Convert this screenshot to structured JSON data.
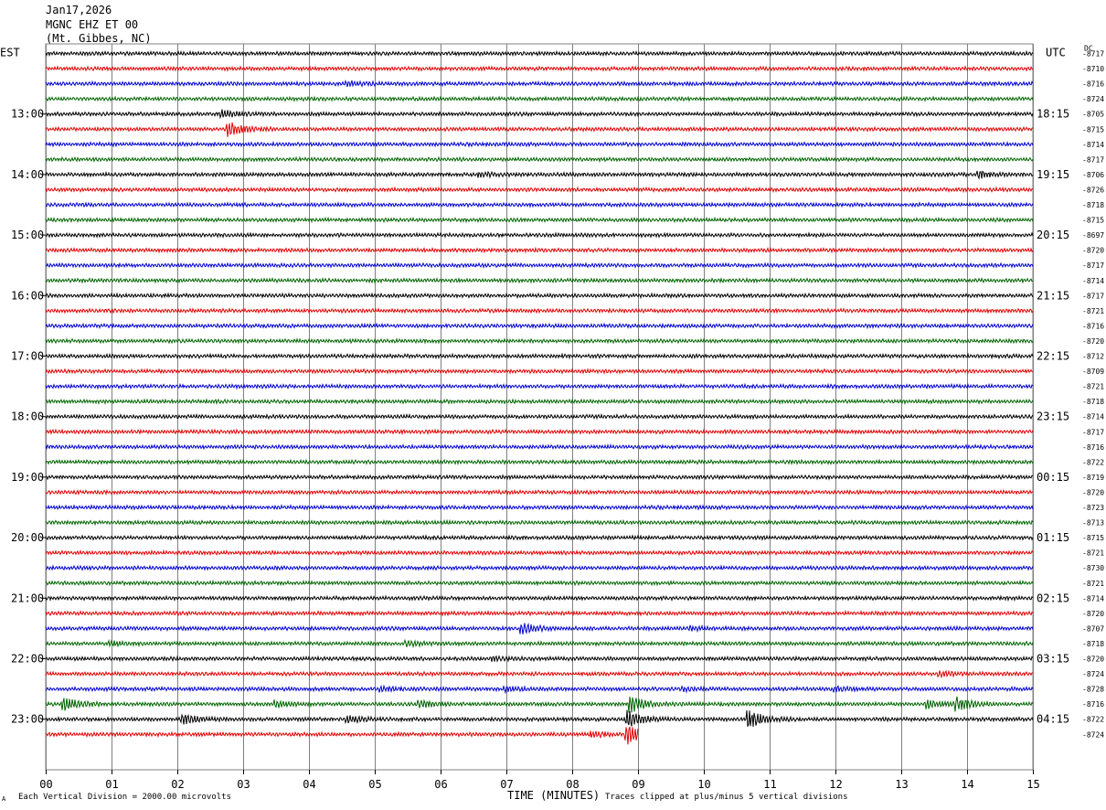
{
  "header": {
    "date": "Jan17,2026",
    "station": "MGNC EHZ ET 00",
    "location": "(Mt. Gibbes, NC)"
  },
  "left_axis_label": "EST",
  "right_axis_label": "UTC",
  "dc_label": "DC",
  "footer": {
    "scale_note": "Each Vertical Division = 2000.00 microvolts",
    "x_title": "TIME (MINUTES)",
    "clip_note": "Traces clipped at plus/minus 5 vertical divisions",
    "corner_mark": "A"
  },
  "colors": {
    "trace_cycle": [
      "#000000",
      "#e00000",
      "#0000d0",
      "#006400"
    ],
    "grid": "#808080"
  },
  "chart_data": {
    "type": "line",
    "title": "MGNC EHZ ET 00",
    "xlabel": "TIME (MINUTES)",
    "xlim": [
      0,
      15
    ],
    "x_ticks": [
      "00",
      "01",
      "02",
      "03",
      "04",
      "05",
      "06",
      "07",
      "08",
      "09",
      "10",
      "11",
      "12",
      "13",
      "14",
      "15"
    ],
    "left_time_labels": [
      "13:00",
      "14:00",
      "15:00",
      "16:00",
      "17:00",
      "18:00",
      "19:00",
      "20:00",
      "21:00",
      "22:00",
      "23:00"
    ],
    "right_time_labels": [
      "18:15",
      "19:15",
      "20:15",
      "21:15",
      "22:15",
      "23:15",
      "00:15",
      "01:15",
      "02:15",
      "03:15",
      "04:15"
    ],
    "first_labeled_row": 4,
    "label_every_rows": 4,
    "row_count": 46,
    "last_row_end_minute": 9.0,
    "dc_offsets": [
      "-8717",
      "-8710",
      "-8716",
      "-8724",
      "-8705",
      "-8715",
      "-8714",
      "-8717",
      "-8706",
      "-8726",
      "-8718",
      "-8715",
      "-8697",
      "-8720",
      "-8717",
      "-8714",
      "-8717",
      "-8721",
      "-8716",
      "-8720",
      "-8712",
      "-8709",
      "-8721",
      "-8718",
      "-8714",
      "-8717",
      "-8716",
      "-8722",
      "-8719",
      "-8720",
      "-8723",
      "-8713",
      "-8715",
      "-8721",
      "-8730",
      "-8721",
      "-8714",
      "-8720",
      "-8707",
      "-8718",
      "-8720",
      "-8724",
      "-8728",
      "-8716",
      "-8722",
      "-8724"
    ],
    "events": [
      {
        "row": 2,
        "minute": 4.6,
        "amp": 2.0
      },
      {
        "row": 4,
        "minute": 2.7,
        "amp": 3.0
      },
      {
        "row": 5,
        "minute": 2.8,
        "amp": 6.5
      },
      {
        "row": 8,
        "minute": 6.6,
        "amp": 2.0
      },
      {
        "row": 8,
        "minute": 14.2,
        "amp": 2.5
      },
      {
        "row": 38,
        "minute": 7.25,
        "amp": 5.0
      },
      {
        "row": 38,
        "minute": 9.8,
        "amp": 1.5
      },
      {
        "row": 39,
        "minute": 1.0,
        "amp": 2.0
      },
      {
        "row": 39,
        "minute": 5.5,
        "amp": 2.0
      },
      {
        "row": 40,
        "minute": 6.8,
        "amp": 1.5
      },
      {
        "row": 41,
        "minute": 13.6,
        "amp": 2.0
      },
      {
        "row": 42,
        "minute": 5.1,
        "amp": 2.0
      },
      {
        "row": 42,
        "minute": 7.0,
        "amp": 2.0
      },
      {
        "row": 42,
        "minute": 9.7,
        "amp": 1.5
      },
      {
        "row": 42,
        "minute": 12.0,
        "amp": 2.0
      },
      {
        "row": 43,
        "minute": 0.3,
        "amp": 6.0
      },
      {
        "row": 43,
        "minute": 3.5,
        "amp": 3.0
      },
      {
        "row": 43,
        "minute": 5.7,
        "amp": 3.0
      },
      {
        "row": 43,
        "minute": 8.9,
        "amp": 8.0
      },
      {
        "row": 43,
        "minute": 13.4,
        "amp": 3.5
      },
      {
        "row": 43,
        "minute": 13.85,
        "amp": 6.0
      },
      {
        "row": 44,
        "minute": 2.1,
        "amp": 4.0
      },
      {
        "row": 44,
        "minute": 4.6,
        "amp": 3.5
      },
      {
        "row": 44,
        "minute": 10.7,
        "amp": 8.0
      },
      {
        "row": 44,
        "minute": 8.85,
        "amp": 8.0
      },
      {
        "row": 45,
        "minute": 8.85,
        "amp": 9.0
      },
      {
        "row": 45,
        "minute": 8.3,
        "amp": 2.5
      }
    ]
  }
}
